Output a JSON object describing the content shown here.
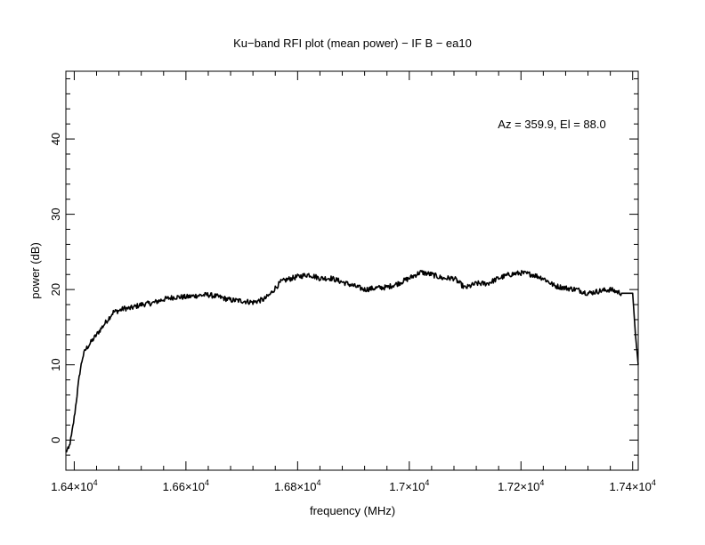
{
  "chart_data": {
    "type": "line",
    "title": "Ku−band RFI plot (mean power) − IF B − ea10",
    "xlabel": "frequency (MHz)",
    "ylabel": "power (dB)",
    "annotation": "Az = 359.9, El = 88.0",
    "xlim": [
      16385,
      17410
    ],
    "ylim": [
      -4,
      49
    ],
    "x_ticks": [
      {
        "value": 16400,
        "label": "1.64×10",
        "exp": "4"
      },
      {
        "value": 16600,
        "label": "1.66×10",
        "exp": "4"
      },
      {
        "value": 16800,
        "label": "1.68×10",
        "exp": "4"
      },
      {
        "value": 17000,
        "label": "1.7×10",
        "exp": "4"
      },
      {
        "value": 17200,
        "label": "1.72×10",
        "exp": "4"
      },
      {
        "value": 17400,
        "label": "1.74×10",
        "exp": "4"
      }
    ],
    "y_ticks": [
      {
        "value": 0,
        "label": "0"
      },
      {
        "value": 10,
        "label": "10"
      },
      {
        "value": 20,
        "label": "20"
      },
      {
        "value": 30,
        "label": "30"
      },
      {
        "value": 40,
        "label": "40"
      }
    ],
    "line_color": "#000000",
    "grid": false,
    "series": [
      {
        "x": [
          16385,
          16390,
          16395,
          16400,
          16405,
          16410,
          16415,
          16420,
          16425,
          16430,
          16440,
          16450,
          16460,
          16470,
          16480,
          16490,
          16500,
          16520,
          16540,
          16560,
          16580,
          16600,
          16620,
          16640,
          16660,
          16680,
          16700,
          16720,
          16740,
          16750,
          16760,
          16770,
          16780,
          16800,
          16820,
          16840,
          16860,
          16880,
          16900,
          16920,
          16940,
          16960,
          16980,
          17000,
          17020,
          17040,
          17060,
          17080,
          17100,
          17120,
          17140,
          17160,
          17180,
          17200,
          17220,
          17240,
          17260,
          17280,
          17300,
          17320,
          17340,
          17360,
          17380,
          17395,
          17400,
          17405,
          17410
        ],
        "y": [
          -1.5,
          -1.2,
          0.5,
          3,
          6,
          9,
          11,
          12,
          12.5,
          13,
          14,
          15,
          16,
          17,
          17.2,
          17.5,
          17.5,
          18,
          18.2,
          18.7,
          19,
          19,
          19.2,
          19.3,
          19,
          18.6,
          18.5,
          18.3,
          18.7,
          19.3,
          20.2,
          21,
          21.3,
          21.7,
          22,
          21.5,
          21.5,
          21,
          20.5,
          20,
          20.2,
          20.3,
          20.8,
          21.5,
          22.3,
          22,
          21.5,
          21.5,
          20.2,
          20.8,
          20.8,
          21.5,
          22,
          22.2,
          22,
          21.5,
          20.5,
          20.2,
          20,
          19.5,
          19.8,
          20,
          19.5,
          19.5,
          19.5,
          14,
          10
        ]
      }
    ]
  }
}
